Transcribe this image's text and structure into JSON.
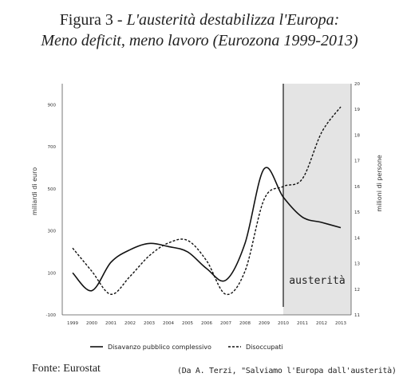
{
  "header": {
    "fig_prefix": "Figura 3 - ",
    "title_line1": "L'austerità destabilizza l'Europa:",
    "title_line2": "Meno deficit, meno lavoro (Eurozona 1999-2013)"
  },
  "footer": {
    "source": "Fonte: Eurostat",
    "credit": "(Da A. Terzi, \"Salviamo l'Europa dall'austerità)"
  },
  "colors": {
    "shade": "#e4e4e4",
    "line": "#111111"
  },
  "chart_data": {
    "type": "line",
    "x": [
      1999,
      2000,
      2001,
      2002,
      2003,
      2004,
      2005,
      2006,
      2007,
      2008,
      2009,
      2010,
      2011,
      2012,
      2013
    ],
    "x_tick_labels": [
      "1999",
      "2000",
      "2001",
      "2002",
      "2003",
      "2004",
      "2005",
      "2006",
      "2007",
      "2008",
      "2009",
      "2010",
      "2011",
      "2012",
      "2013"
    ],
    "ylabel_left": "miliardi di euro",
    "ylabel_right": "milioni di persone",
    "y_left_ticks": [
      -100,
      100,
      300,
      500,
      700,
      900
    ],
    "y_left_range": [
      -100,
      1000
    ],
    "y_right_ticks": [
      11,
      12,
      13,
      14,
      15,
      16,
      17,
      18,
      19,
      20
    ],
    "y_right_range": [
      11,
      20
    ],
    "series": [
      {
        "name": "Disavanzo pubblico complessivo",
        "axis": "left",
        "style": "solid",
        "values": [
          100,
          15,
          150,
          210,
          240,
          225,
          200,
          120,
          65,
          240,
          595,
          460,
          365,
          340,
          315
        ]
      },
      {
        "name": "Disoccupati",
        "axis": "right",
        "style": "dashed",
        "values": [
          13.6,
          12.7,
          11.8,
          12.5,
          13.3,
          13.8,
          13.9,
          13.1,
          11.8,
          12.7,
          15.5,
          16.0,
          16.3,
          18.1,
          19.1
        ]
      }
    ],
    "shaded_region": {
      "from": 2010,
      "to": 2013.6,
      "label": "austerità"
    },
    "legend_position": "bottom",
    "grid": false
  }
}
